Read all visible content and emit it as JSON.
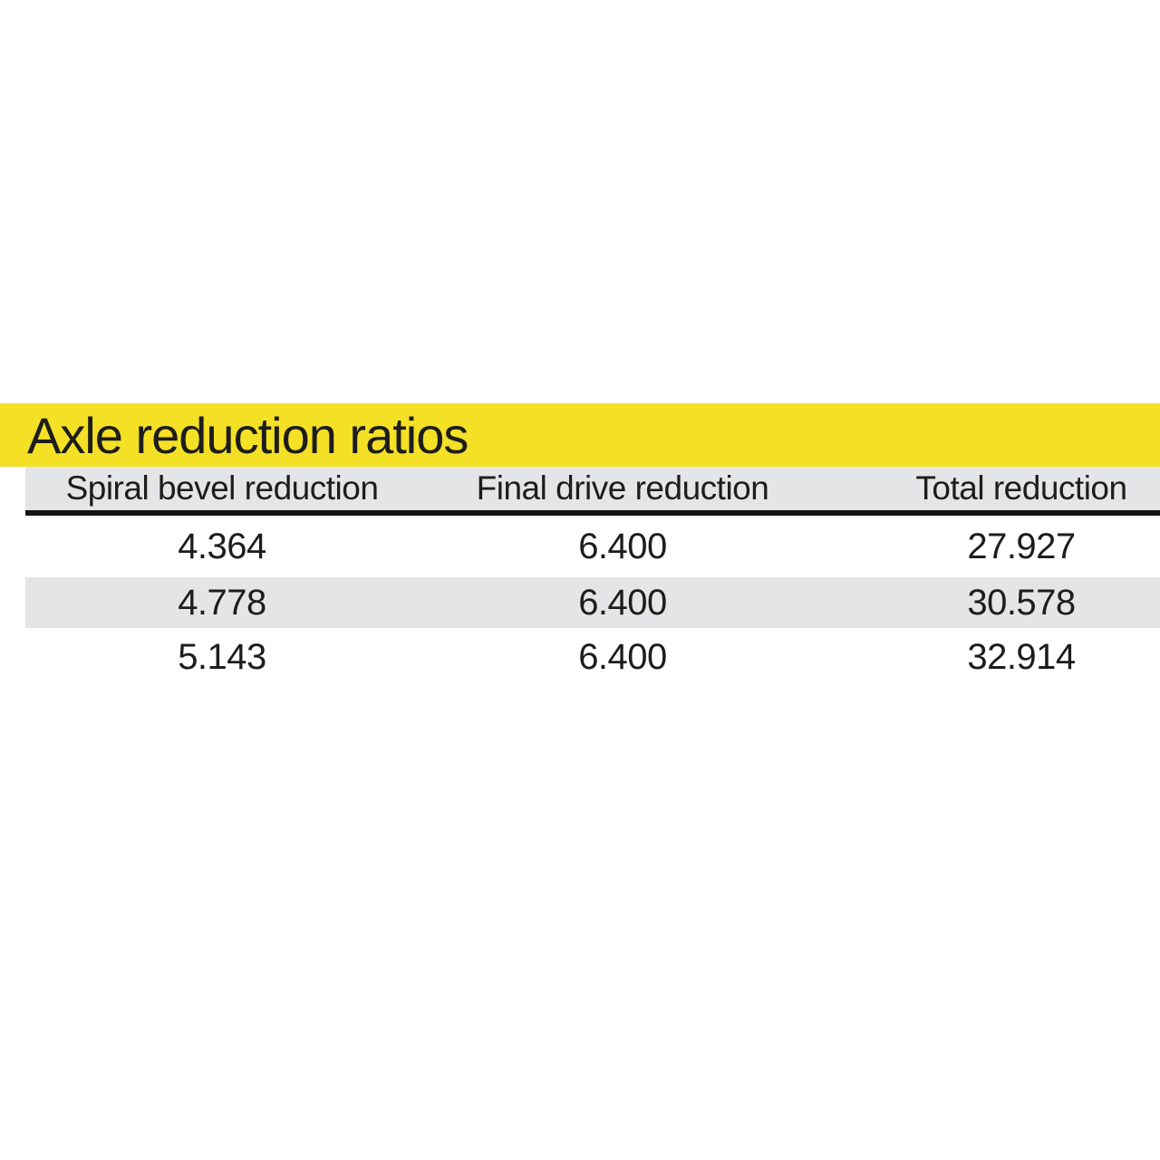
{
  "title": "Axle reduction ratios",
  "colors": {
    "band_yellow": "#F4E025",
    "stripe_gray": "#E4E5E6",
    "text": "#1D1D1B",
    "rule_black": "#141414"
  },
  "table": {
    "columns": [
      "Spiral bevel reduction",
      "Final drive reduction",
      "Total reduction"
    ],
    "rows": [
      [
        "4.364",
        "6.400",
        "27.927"
      ],
      [
        "4.778",
        "6.400",
        "30.578"
      ],
      [
        "5.143",
        "6.400",
        "32.914"
      ]
    ]
  }
}
